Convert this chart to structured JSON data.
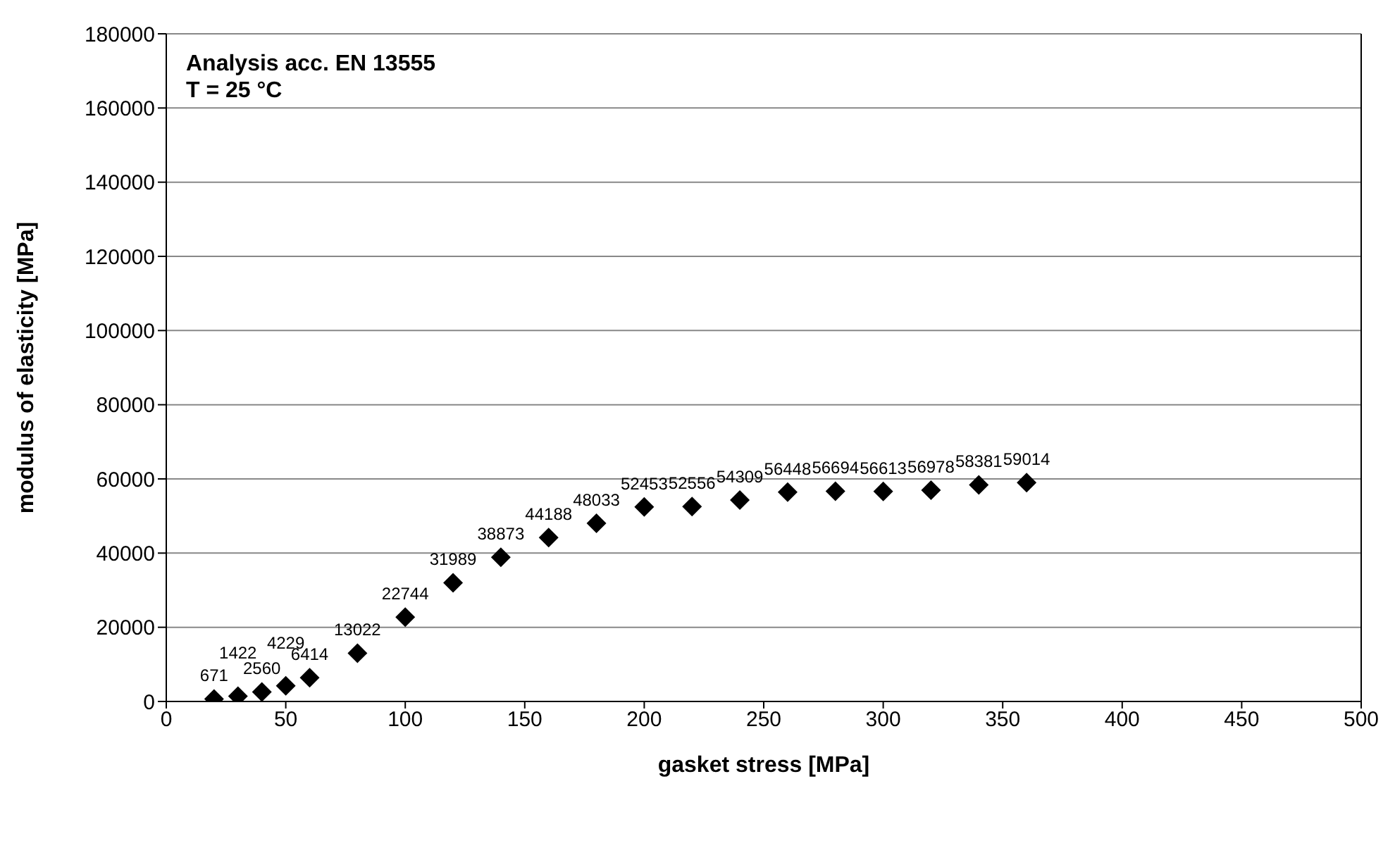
{
  "chart_data": {
    "type": "scatter",
    "xlabel": "gasket stress [MPa]",
    "ylabel": "modulus of elasticity [MPa]",
    "annotations": [
      "Analysis acc. EN 13555",
      "T = 25 °C"
    ],
    "x": [
      20,
      30,
      40,
      50,
      60,
      80,
      100,
      120,
      140,
      160,
      180,
      200,
      220,
      240,
      260,
      280,
      300,
      320,
      340,
      360
    ],
    "series": [
      {
        "color": "#000000",
        "values": [
          671,
          1422,
          2560,
          4229,
          6414,
          13022,
          22744,
          31989,
          38873,
          44188,
          48033,
          52453,
          52556,
          54309,
          56448,
          56694,
          56613,
          56978,
          58381,
          59014
        ]
      }
    ],
    "xlim": [
      0,
      500
    ],
    "xticks": [
      0,
      50,
      100,
      150,
      200,
      250,
      300,
      350,
      400,
      450,
      500
    ],
    "ylim": [
      0,
      180000
    ],
    "yticks": [
      0,
      20000,
      40000,
      60000,
      80000,
      100000,
      120000,
      140000,
      160000,
      180000
    ],
    "grid": "y",
    "marker": "diamond",
    "data_labels": true,
    "legend": false
  }
}
